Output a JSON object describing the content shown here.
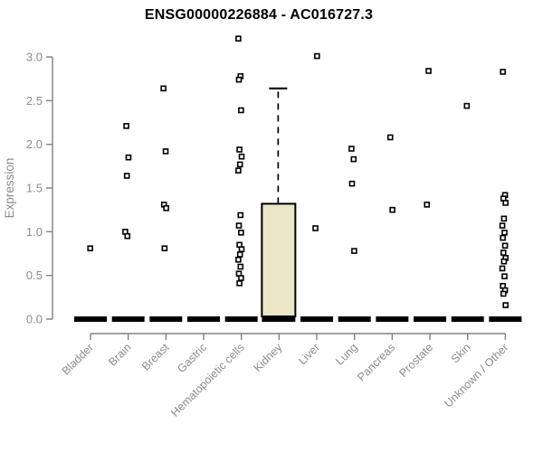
{
  "chart_data": {
    "type": "boxplot",
    "title": "ENSG00000226884 - AC016727.3",
    "xlabel": "",
    "ylabel": "Expression",
    "ylim": [
      0,
      3.25
    ],
    "yticks": [
      "0.0",
      "0.5",
      "1.0",
      "1.5",
      "2.0",
      "2.5",
      "3.0"
    ],
    "grid": false,
    "legend": "none",
    "categories": [
      "Bladder",
      "Brain",
      "Breast",
      "Gastric",
      "Hematopoietic cells",
      "Kidney",
      "Liver",
      "Lung",
      "Pancreas",
      "Prostate",
      "Skin",
      "Unknown / Other"
    ],
    "series": [
      {
        "category": "Bladder",
        "whisker_low": 0,
        "q1": 0,
        "median": 0,
        "q3": 0,
        "whisker_high": 0,
        "outliers": [
          0.81
        ]
      },
      {
        "category": "Brain",
        "whisker_low": 0,
        "q1": 0,
        "median": 0,
        "q3": 0,
        "whisker_high": 0,
        "outliers": [
          2.21,
          1.85,
          1.64,
          1.0,
          0.95
        ]
      },
      {
        "category": "Breast",
        "whisker_low": 0,
        "q1": 0,
        "median": 0,
        "q3": 0,
        "whisker_high": 0,
        "outliers": [
          2.64,
          1.92,
          1.31,
          1.27,
          0.81
        ]
      },
      {
        "category": "Gastric",
        "whisker_low": 0,
        "q1": 0,
        "median": 0,
        "q3": 0,
        "whisker_high": 0,
        "outliers": []
      },
      {
        "category": "Hematopoietic cells",
        "whisker_low": 0,
        "q1": 0,
        "median": 0,
        "q3": 0,
        "whisker_high": 0,
        "outliers": [
          3.21,
          2.78,
          2.74,
          2.39,
          1.94,
          1.86,
          1.77,
          1.7,
          1.19,
          1.07,
          0.99,
          0.85,
          0.8,
          0.74,
          0.68,
          0.6,
          0.52,
          0.47,
          0.41
        ]
      },
      {
        "category": "Kidney",
        "whisker_low": 0,
        "q1": 0,
        "median": 0,
        "q3": 1.32,
        "whisker_high": 2.64,
        "outliers": []
      },
      {
        "category": "Liver",
        "whisker_low": 0,
        "q1": 0,
        "median": 0,
        "q3": 0,
        "whisker_high": 0,
        "outliers": [
          3.01,
          1.04
        ]
      },
      {
        "category": "Lung",
        "whisker_low": 0,
        "q1": 0,
        "median": 0,
        "q3": 0,
        "whisker_high": 0,
        "outliers": [
          1.95,
          1.83,
          1.55,
          0.78
        ]
      },
      {
        "category": "Pancreas",
        "whisker_low": 0,
        "q1": 0,
        "median": 0,
        "q3": 0,
        "whisker_high": 0,
        "outliers": [
          2.08,
          1.25
        ]
      },
      {
        "category": "Prostate",
        "whisker_low": 0,
        "q1": 0,
        "median": 0,
        "q3": 0,
        "whisker_high": 0,
        "outliers": [
          2.84,
          1.31
        ]
      },
      {
        "category": "Skin",
        "whisker_low": 0,
        "q1": 0,
        "median": 0,
        "q3": 0,
        "whisker_high": 0,
        "outliers": [
          2.44
        ]
      },
      {
        "category": "Unknown / Other",
        "whisker_low": 0,
        "q1": 0,
        "median": 0,
        "q3": 0,
        "whisker_high": 0,
        "outliers": [
          2.83,
          1.42,
          1.38,
          1.33,
          1.15,
          1.07,
          0.99,
          0.93,
          0.84,
          0.76,
          0.7,
          0.66,
          0.58,
          0.49,
          0.38,
          0.33,
          0.29,
          0.16
        ]
      }
    ],
    "colors": {
      "box_fill": "#EBE6C7",
      "box_stroke": "#000000",
      "median_bar": "#000000",
      "whisker": "#000000",
      "point_stroke": "#000000",
      "point_fill": "#FFFFFF",
      "axis": "#808080",
      "tick_label": "#8C8C8C",
      "title": "#000000",
      "background": "#FFFFFF"
    }
  }
}
